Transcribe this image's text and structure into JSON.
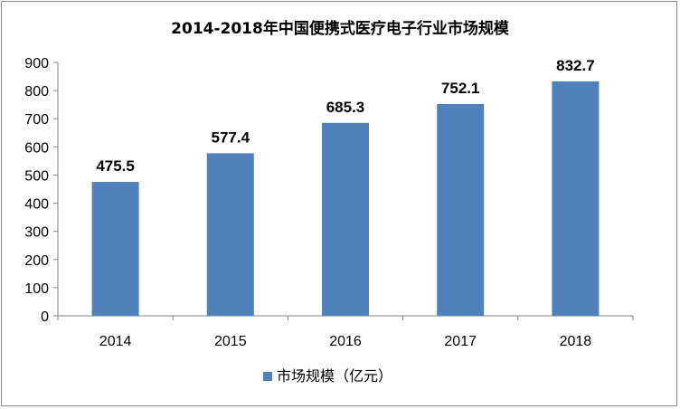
{
  "chart_data": {
    "type": "bar",
    "title": "2014-2018年中国便携式医疗电子行业市场规模",
    "categories": [
      "2014",
      "2015",
      "2016",
      "2017",
      "2018"
    ],
    "series": [
      {
        "name": "市场规模（亿元）",
        "values": [
          475.5,
          577.4,
          685.3,
          752.1,
          832.7
        ],
        "color": "#4f81bd"
      }
    ],
    "ylim": [
      0,
      900
    ],
    "yticks": [
      0,
      100,
      200,
      300,
      400,
      500,
      600,
      700,
      800,
      900
    ],
    "xlabel": "",
    "ylabel": "",
    "grid": false,
    "legend_position": "bottom"
  }
}
